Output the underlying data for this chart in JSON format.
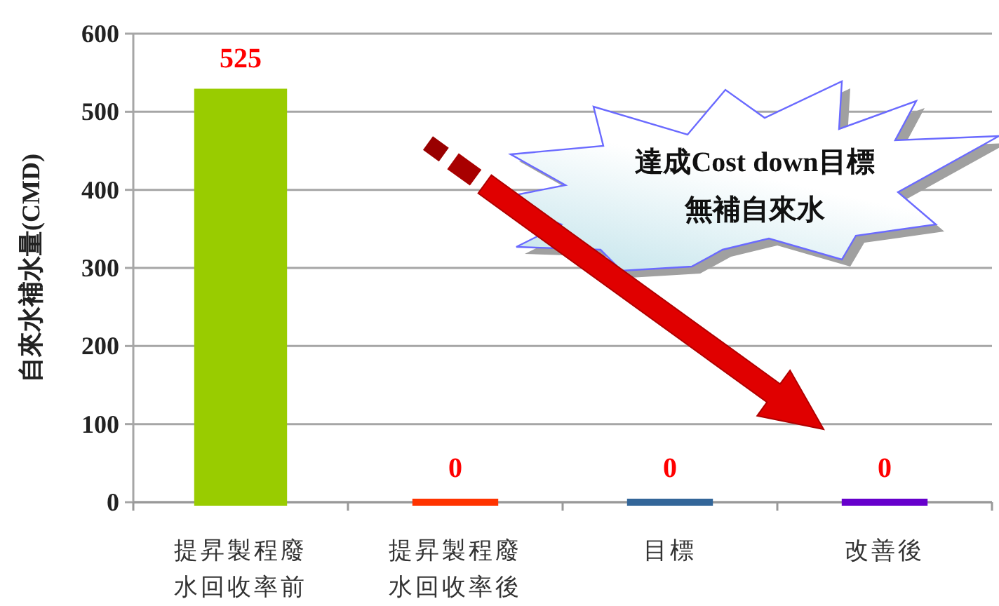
{
  "chart_data": {
    "type": "bar",
    "ylabel": "自來水補水量(CMD)",
    "categories": [
      "提昇製程廢水回收率前",
      "提昇製程廢水回收率後",
      "目標",
      "改善後"
    ],
    "values": [
      525,
      0,
      0,
      0
    ],
    "colors": [
      "#99cc00",
      "#ff3300",
      "#336699",
      "#6600cc"
    ],
    "ylim": [
      0,
      600
    ],
    "yticks": [
      0,
      100,
      200,
      300,
      400,
      500,
      600
    ],
    "grid": "y",
    "data_labels": true,
    "annotations": [
      "達成Cost down目標無補自來水"
    ]
  }
}
